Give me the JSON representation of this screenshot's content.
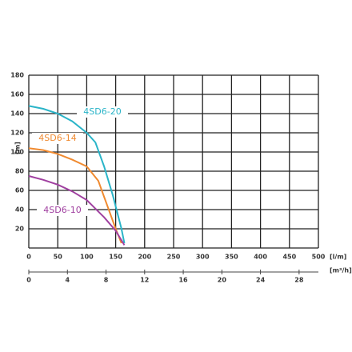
{
  "chart_data": {
    "type": "line",
    "ylabel": "[m]",
    "xlabel": "[l/m]",
    "x2label": "[m³/h]",
    "xlim": [
      0,
      500
    ],
    "xticks": [
      0,
      50,
      100,
      150,
      200,
      250,
      300,
      350,
      400,
      450,
      500
    ],
    "x2lim": [
      0,
      30
    ],
    "x2ticks": [
      0,
      4,
      8,
      12,
      16,
      20,
      24,
      28
    ],
    "ylim": [
      0,
      180
    ],
    "yticks": [
      20,
      40,
      60,
      80,
      100,
      120,
      140,
      160,
      180
    ],
    "grid": true,
    "series": [
      {
        "name": "4SD6-20",
        "color": "#2ab4c8",
        "x": [
          0,
          25,
          50,
          75,
          100,
          115,
          130,
          145,
          160,
          165
        ],
        "values": [
          148,
          145,
          140,
          132,
          120,
          110,
          85,
          55,
          20,
          5
        ]
      },
      {
        "name": "4SD6-14",
        "color": "#f08a30",
        "x": [
          0,
          25,
          50,
          75,
          100,
          120,
          135,
          150,
          160
        ],
        "values": [
          104,
          102,
          98,
          92,
          85,
          70,
          45,
          20,
          5
        ]
      },
      {
        "name": "4SD6-10",
        "color": "#a040a0",
        "x": [
          0,
          25,
          50,
          75,
          100,
          130,
          150,
          165
        ],
        "values": [
          75,
          71,
          66,
          59,
          50,
          32,
          18,
          3
        ]
      }
    ]
  }
}
